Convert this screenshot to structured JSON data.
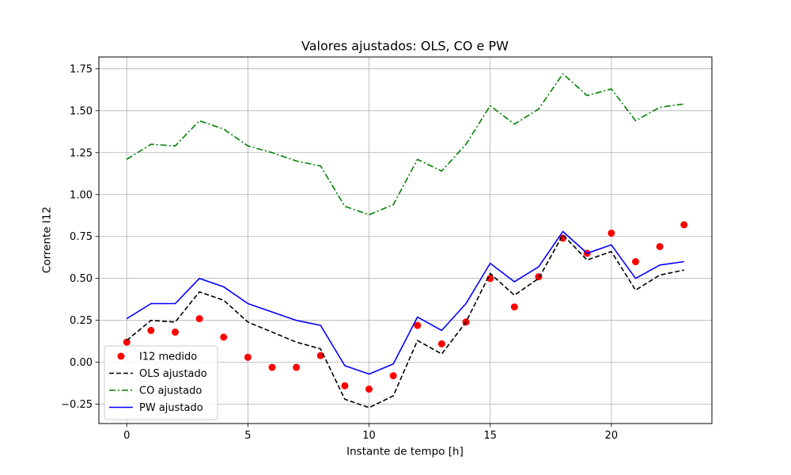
{
  "chart_data": {
    "type": "line",
    "title": "Valores ajustados: OLS, CO e PW",
    "xlabel": "Instante de tempo [h]",
    "ylabel": "Corrente I12",
    "xlim": [
      -1.15,
      24.15
    ],
    "ylim": [
      -0.365,
      1.82
    ],
    "xticks": [
      0,
      5,
      10,
      15,
      20
    ],
    "xtick_labels": [
      "0",
      "5",
      "10",
      "15",
      "20"
    ],
    "yticks": [
      -0.25,
      0.0,
      0.25,
      0.5,
      0.75,
      1.0,
      1.25,
      1.5,
      1.75
    ],
    "ytick_labels": [
      "−0.25",
      "0.00",
      "0.25",
      "0.50",
      "0.75",
      "1.00",
      "1.25",
      "1.50",
      "1.75"
    ],
    "grid": true,
    "legend_position": "lower-left",
    "x": [
      0,
      1,
      2,
      3,
      4,
      5,
      6,
      7,
      8,
      9,
      10,
      11,
      12,
      13,
      14,
      15,
      16,
      17,
      18,
      19,
      20,
      21,
      22,
      23
    ],
    "series": [
      {
        "name": "I12 medido",
        "style": "scatter",
        "color": "#ff0000",
        "values": [
          0.12,
          0.19,
          0.18,
          0.26,
          0.15,
          0.03,
          -0.03,
          -0.03,
          0.04,
          -0.14,
          -0.16,
          -0.08,
          0.22,
          0.11,
          0.24,
          0.5,
          0.33,
          0.51,
          0.74,
          0.65,
          0.77,
          0.6,
          0.69,
          0.82
        ]
      },
      {
        "name": "OLS ajustado",
        "style": "dashed",
        "color": "#000000",
        "values": [
          0.13,
          0.25,
          0.24,
          0.42,
          0.37,
          0.24,
          0.18,
          0.12,
          0.08,
          -0.22,
          -0.27,
          -0.2,
          0.13,
          0.05,
          0.24,
          0.53,
          0.4,
          0.5,
          0.76,
          0.61,
          0.66,
          0.43,
          0.52,
          0.55
        ]
      },
      {
        "name": "CO ajustado",
        "style": "dashdot",
        "color": "#008000",
        "values": [
          1.21,
          1.3,
          1.29,
          1.44,
          1.39,
          1.29,
          1.25,
          1.2,
          1.17,
          0.93,
          0.88,
          0.94,
          1.21,
          1.14,
          1.3,
          1.53,
          1.42,
          1.51,
          1.72,
          1.59,
          1.63,
          1.44,
          1.52,
          1.54
        ]
      },
      {
        "name": "PW ajustado",
        "style": "solid",
        "color": "#0000ff",
        "values": [
          0.26,
          0.35,
          0.35,
          0.5,
          0.45,
          0.35,
          0.3,
          0.25,
          0.22,
          -0.02,
          -0.07,
          -0.01,
          0.27,
          0.19,
          0.35,
          0.59,
          0.48,
          0.57,
          0.78,
          0.65,
          0.7,
          0.5,
          0.58,
          0.6
        ]
      }
    ]
  }
}
